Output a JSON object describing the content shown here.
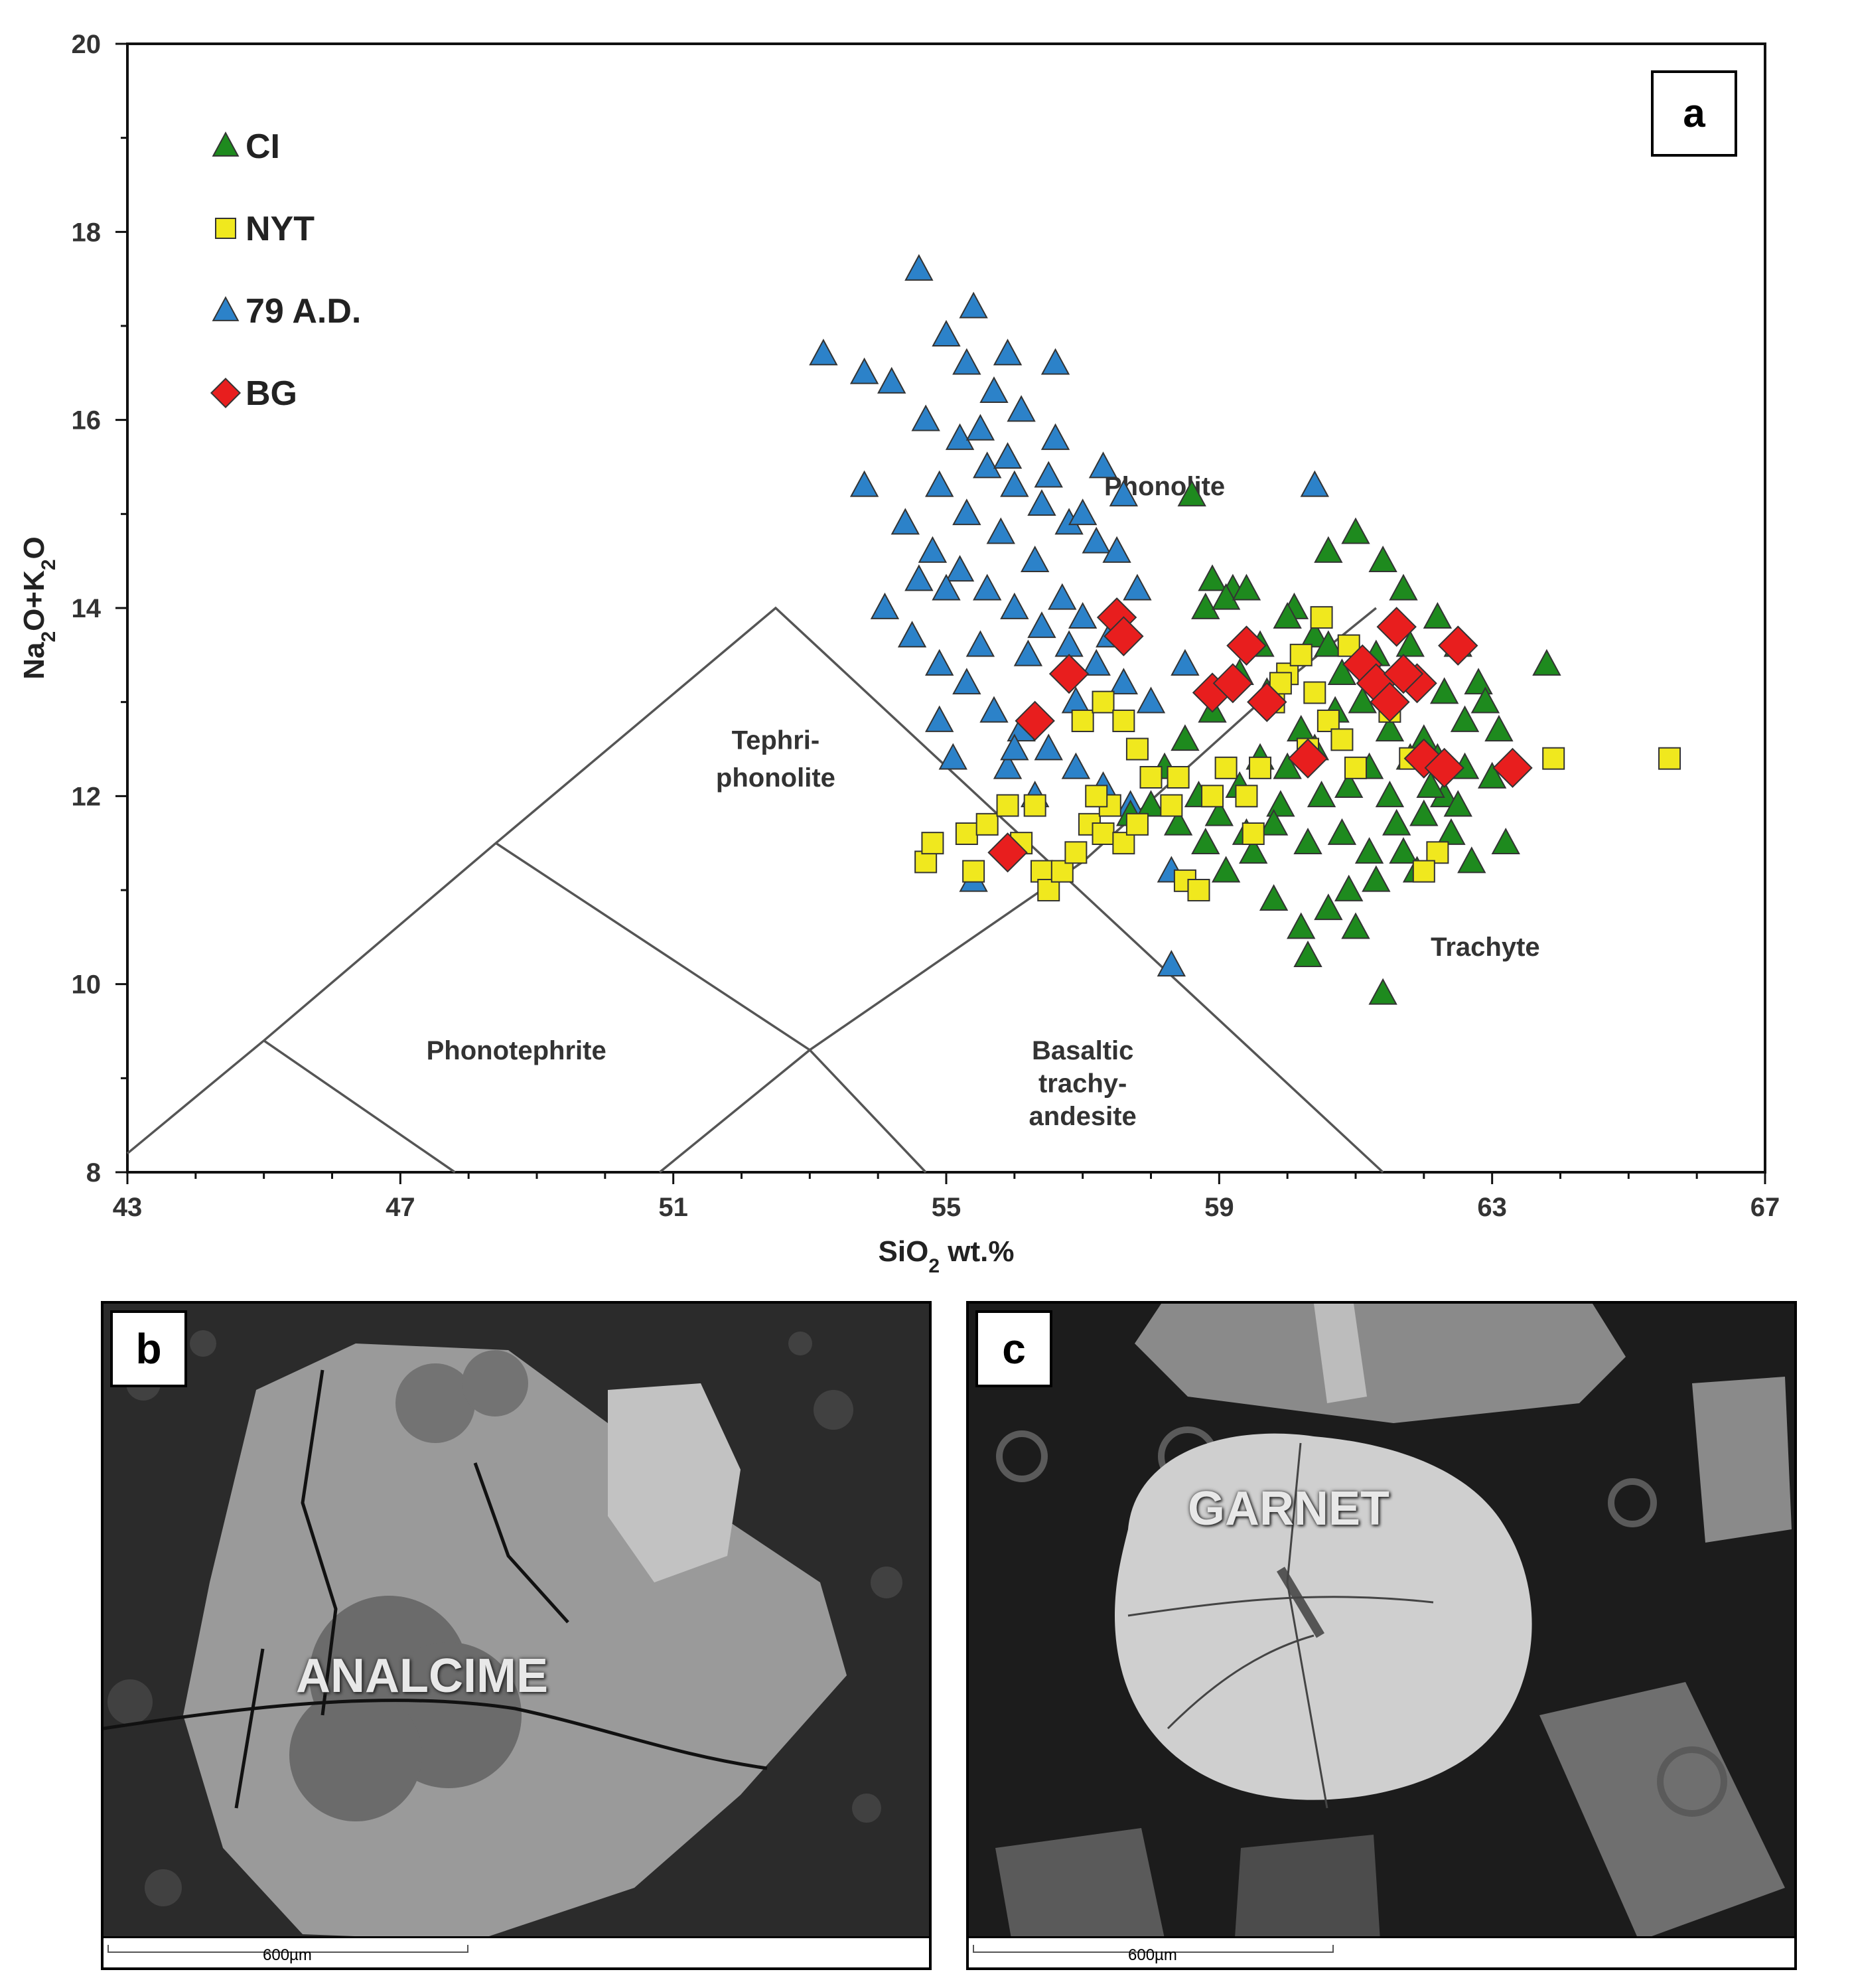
{
  "chart_data": {
    "type": "scatter",
    "title": "",
    "xlabel_main": "SiO",
    "xlabel_sub": "2",
    "xlabel_rest": " wt.%",
    "ylabel_parts": [
      "Na",
      "2",
      "O+K",
      "2",
      "O"
    ],
    "xlim": [
      43,
      67
    ],
    "ylim": [
      8,
      20
    ],
    "xticks": [
      43,
      47,
      51,
      55,
      59,
      63,
      67
    ],
    "yticks": [
      8,
      10,
      12,
      14,
      16,
      18,
      20
    ],
    "legend_position": "top-left",
    "panel_tag": "a",
    "tas_boundaries": [
      [
        [
          43,
          8.2
        ],
        [
          45,
          9.4
        ],
        [
          48.4,
          11.5
        ],
        [
          52.5,
          14
        ],
        [
          61.4,
          8
        ]
      ],
      [
        [
          45,
          9.4
        ],
        [
          47.8,
          8
        ]
      ],
      [
        [
          48.4,
          11.5
        ],
        [
          53,
          9.3
        ],
        [
          54.7,
          8
        ]
      ],
      [
        [
          50.8,
          8
        ],
        [
          53,
          9.3
        ],
        [
          57,
          11.3
        ],
        [
          59.6,
          13
        ],
        [
          61.3,
          14
        ]
      ]
    ],
    "field_labels": [
      {
        "text": "Phonolite",
        "x": 58.2,
        "y": 15.2
      },
      {
        "text": "Tephri-",
        "x": 52.5,
        "y": 12.5
      },
      {
        "text": "phonolite",
        "x": 52.5,
        "y": 12.1
      },
      {
        "text": "Phonotephrite",
        "x": 48.7,
        "y": 9.2
      },
      {
        "text": "Basaltic",
        "x": 57.0,
        "y": 9.2
      },
      {
        "text": "trachy-",
        "x": 57.0,
        "y": 8.85
      },
      {
        "text": "andesite",
        "x": 57.0,
        "y": 8.5
      },
      {
        "text": "Trachyte",
        "x": 62.9,
        "y": 10.3
      }
    ],
    "series": [
      {
        "name": "CI",
        "marker": "triangle",
        "color": "#1e8a1e",
        "points": [
          [
            58.6,
            15.2
          ],
          [
            58.9,
            14.3
          ],
          [
            59.2,
            14.2
          ],
          [
            58.8,
            14.0
          ],
          [
            59.1,
            14.1
          ],
          [
            59.4,
            14.2
          ],
          [
            60.1,
            14.0
          ],
          [
            60.6,
            14.6
          ],
          [
            61.0,
            14.8
          ],
          [
            61.4,
            14.5
          ],
          [
            61.7,
            14.2
          ],
          [
            62.2,
            13.9
          ],
          [
            62.5,
            13.6
          ],
          [
            62.8,
            13.2
          ],
          [
            63.8,
            13.4
          ],
          [
            62.9,
            13.0
          ],
          [
            63.1,
            12.7
          ],
          [
            62.6,
            12.3
          ],
          [
            62.3,
            12.0
          ],
          [
            62.0,
            11.8
          ],
          [
            61.7,
            11.4
          ],
          [
            61.3,
            11.1
          ],
          [
            61.0,
            10.6
          ],
          [
            60.6,
            10.8
          ],
          [
            60.2,
            10.6
          ],
          [
            59.8,
            10.9
          ],
          [
            59.5,
            11.4
          ],
          [
            59.1,
            11.2
          ],
          [
            58.8,
            11.5
          ],
          [
            58.4,
            11.7
          ],
          [
            58.0,
            11.9
          ],
          [
            57.7,
            11.8
          ],
          [
            58.2,
            12.3
          ],
          [
            58.5,
            12.6
          ],
          [
            58.9,
            12.9
          ],
          [
            59.3,
            13.3
          ],
          [
            59.6,
            13.6
          ],
          [
            60.0,
            13.9
          ],
          [
            60.4,
            13.7
          ],
          [
            60.8,
            13.3
          ],
          [
            61.1,
            13.0
          ],
          [
            61.5,
            12.7
          ],
          [
            61.8,
            12.4
          ],
          [
            62.1,
            12.1
          ],
          [
            62.4,
            11.6
          ],
          [
            62.7,
            11.3
          ],
          [
            63.2,
            11.5
          ],
          [
            60.3,
            10.3
          ],
          [
            61.4,
            9.9
          ],
          [
            60.9,
            11.0
          ],
          [
            61.6,
            11.7
          ],
          [
            62.0,
            12.6
          ],
          [
            61.2,
            12.3
          ],
          [
            60.5,
            12.0
          ],
          [
            59.9,
            11.9
          ],
          [
            59.3,
            12.1
          ],
          [
            58.7,
            12.0
          ],
          [
            59.0,
            11.8
          ],
          [
            59.6,
            12.4
          ],
          [
            60.2,
            12.7
          ],
          [
            60.7,
            12.9
          ],
          [
            61.3,
            13.5
          ],
          [
            61.8,
            13.6
          ],
          [
            62.3,
            13.1
          ],
          [
            62.6,
            12.8
          ],
          [
            60.0,
            12.3
          ],
          [
            60.4,
            12.5
          ],
          [
            60.9,
            12.1
          ],
          [
            61.5,
            12.0
          ],
          [
            62.2,
            12.4
          ],
          [
            59.4,
            11.6
          ],
          [
            59.8,
            11.7
          ],
          [
            60.3,
            11.5
          ],
          [
            60.8,
            11.6
          ],
          [
            61.2,
            11.4
          ],
          [
            61.9,
            11.2
          ],
          [
            62.5,
            11.9
          ],
          [
            63.0,
            12.2
          ],
          [
            59.7,
            13.1
          ],
          [
            60.6,
            13.6
          ]
        ]
      },
      {
        "name": "NYT",
        "marker": "square",
        "color": "#f0e81e",
        "points": [
          [
            54.7,
            11.3
          ],
          [
            54.8,
            11.5
          ],
          [
            55.4,
            11.2
          ],
          [
            55.3,
            11.6
          ],
          [
            55.6,
            11.7
          ],
          [
            55.9,
            11.9
          ],
          [
            56.1,
            11.5
          ],
          [
            56.4,
            11.2
          ],
          [
            56.5,
            11.0
          ],
          [
            56.7,
            11.2
          ],
          [
            56.9,
            11.4
          ],
          [
            57.1,
            11.7
          ],
          [
            57.3,
            11.6
          ],
          [
            57.6,
            11.5
          ],
          [
            57.8,
            11.7
          ],
          [
            57.4,
            11.9
          ],
          [
            57.2,
            12.0
          ],
          [
            57.0,
            12.8
          ],
          [
            57.3,
            13.0
          ],
          [
            57.6,
            12.8
          ],
          [
            57.8,
            12.5
          ],
          [
            58.0,
            12.2
          ],
          [
            58.3,
            11.9
          ],
          [
            58.5,
            11.1
          ],
          [
            58.7,
            11.0
          ],
          [
            58.9,
            12.0
          ],
          [
            59.1,
            12.3
          ],
          [
            59.4,
            12.0
          ],
          [
            59.6,
            12.3
          ],
          [
            59.8,
            13.0
          ],
          [
            60.0,
            13.3
          ],
          [
            60.2,
            13.5
          ],
          [
            60.4,
            13.1
          ],
          [
            60.6,
            12.8
          ],
          [
            60.8,
            12.6
          ],
          [
            60.5,
            13.9
          ],
          [
            60.9,
            13.6
          ],
          [
            61.2,
            13.3
          ],
          [
            61.5,
            12.9
          ],
          [
            61.8,
            12.4
          ],
          [
            62.2,
            11.4
          ],
          [
            62.0,
            11.2
          ],
          [
            63.9,
            12.4
          ],
          [
            65.6,
            12.4
          ],
          [
            59.5,
            11.6
          ],
          [
            60.3,
            12.5
          ],
          [
            61.0,
            12.3
          ],
          [
            56.3,
            11.9
          ],
          [
            58.4,
            12.2
          ],
          [
            59.9,
            13.2
          ]
        ]
      },
      {
        "name": "79 A.D.",
        "marker": "triangle",
        "color": "#2c82c9",
        "points": [
          [
            54.6,
            17.6
          ],
          [
            55.4,
            17.2
          ],
          [
            53.2,
            16.7
          ],
          [
            53.8,
            16.5
          ],
          [
            54.2,
            16.4
          ],
          [
            56.6,
            16.6
          ],
          [
            55.0,
            16.9
          ],
          [
            55.3,
            16.6
          ],
          [
            55.7,
            16.3
          ],
          [
            56.1,
            16.1
          ],
          [
            54.7,
            16.0
          ],
          [
            55.2,
            15.8
          ],
          [
            55.6,
            15.5
          ],
          [
            56.0,
            15.3
          ],
          [
            56.4,
            15.1
          ],
          [
            56.8,
            14.9
          ],
          [
            57.3,
            15.5
          ],
          [
            57.6,
            15.2
          ],
          [
            53.8,
            15.3
          ],
          [
            54.4,
            14.9
          ],
          [
            54.8,
            14.6
          ],
          [
            55.2,
            14.4
          ],
          [
            55.6,
            14.2
          ],
          [
            56.0,
            14.0
          ],
          [
            56.4,
            13.8
          ],
          [
            56.8,
            13.6
          ],
          [
            57.2,
            13.4
          ],
          [
            57.6,
            13.2
          ],
          [
            58.0,
            13.0
          ],
          [
            54.1,
            14.0
          ],
          [
            54.5,
            13.7
          ],
          [
            54.9,
            13.4
          ],
          [
            55.3,
            13.2
          ],
          [
            55.7,
            12.9
          ],
          [
            56.1,
            12.7
          ],
          [
            56.5,
            12.5
          ],
          [
            56.9,
            12.3
          ],
          [
            57.3,
            12.1
          ],
          [
            57.7,
            11.9
          ],
          [
            55.1,
            12.4
          ],
          [
            55.9,
            12.3
          ],
          [
            56.3,
            12.0
          ],
          [
            54.9,
            12.8
          ],
          [
            55.4,
            11.1
          ],
          [
            58.3,
            10.2
          ],
          [
            60.4,
            15.3
          ],
          [
            58.5,
            13.4
          ],
          [
            58.3,
            11.2
          ],
          [
            57.2,
            14.7
          ],
          [
            56.6,
            15.8
          ],
          [
            55.9,
            16.7
          ],
          [
            55.5,
            15.9
          ],
          [
            54.9,
            15.3
          ],
          [
            55.8,
            14.8
          ],
          [
            56.3,
            14.5
          ],
          [
            56.7,
            14.1
          ],
          [
            57.0,
            13.9
          ],
          [
            56.2,
            13.5
          ],
          [
            55.5,
            13.6
          ],
          [
            55.0,
            14.2
          ],
          [
            54.6,
            14.3
          ],
          [
            55.3,
            15.0
          ],
          [
            55.9,
            15.6
          ],
          [
            56.5,
            15.4
          ],
          [
            57.0,
            15.0
          ],
          [
            57.5,
            14.6
          ],
          [
            57.8,
            14.2
          ],
          [
            57.4,
            13.7
          ],
          [
            56.9,
            13.0
          ],
          [
            56.0,
            12.5
          ]
        ]
      },
      {
        "name": "BG",
        "marker": "diamond",
        "color": "#e81e1e",
        "points": [
          [
            57.5,
            13.9
          ],
          [
            57.6,
            13.7
          ],
          [
            56.8,
            13.3
          ],
          [
            56.3,
            12.8
          ],
          [
            55.9,
            11.4
          ],
          [
            58.9,
            13.1
          ],
          [
            59.4,
            13.6
          ],
          [
            59.2,
            13.2
          ],
          [
            59.7,
            13.0
          ],
          [
            60.3,
            12.4
          ],
          [
            61.1,
            13.4
          ],
          [
            61.3,
            13.2
          ],
          [
            61.6,
            13.8
          ],
          [
            61.9,
            13.2
          ],
          [
            61.7,
            13.3
          ],
          [
            61.5,
            13.0
          ],
          [
            62.5,
            13.6
          ],
          [
            62.0,
            12.4
          ],
          [
            62.3,
            12.3
          ],
          [
            63.3,
            12.3
          ]
        ]
      }
    ]
  },
  "panel_b": {
    "tag": "b",
    "mineral_label": "ANALCIME",
    "scale_label": "600µm"
  },
  "panel_c": {
    "tag": "c",
    "mineral_label": "GARNET",
    "scale_label": "600µm"
  }
}
